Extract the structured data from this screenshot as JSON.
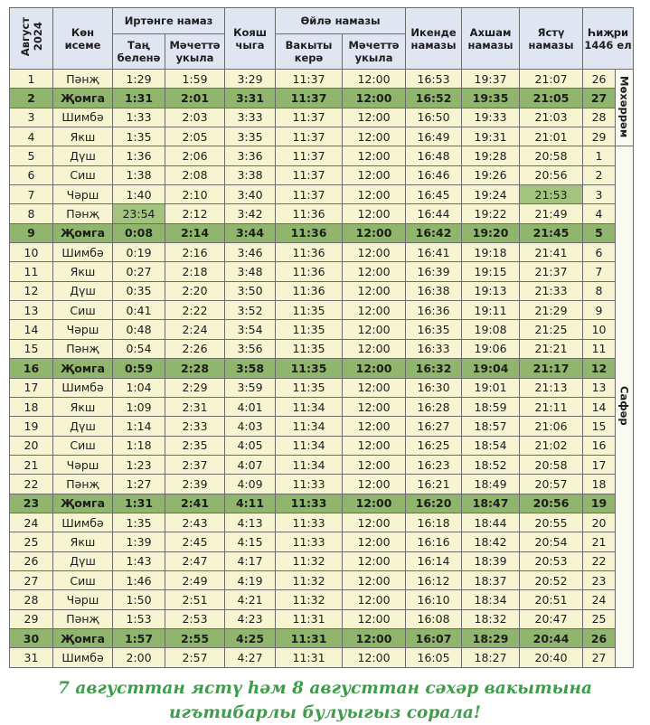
{
  "header": {
    "date": "Август\n2024",
    "day": "Көн\nисеме",
    "morning": {
      "title": "Иртәнге намаз",
      "cols": [
        "Таң\nбеленә",
        "Мәчеттә\nукыла"
      ]
    },
    "sunrise": "Кояш\nчыга",
    "noon": {
      "title": "Өйлә намазы",
      "cols": [
        "Вакыты\nкерә",
        "Мәчеттә\nукыла"
      ]
    },
    "asr": "Икенде\nнамазы",
    "maghrib": "Ахшам\nнамазы",
    "isha": "Ястү\nнамазы",
    "hijri": "Һиҗри\n1446 ел"
  },
  "rows": [
    [
      "1",
      "Пәнҗ",
      "1:29",
      "1:59",
      "3:29",
      "11:37",
      "12:00",
      "16:53",
      "19:37",
      "21:07",
      "26"
    ],
    [
      "2",
      "Җомга",
      "1:31",
      "2:01",
      "3:31",
      "11:37",
      "12:00",
      "16:52",
      "19:35",
      "21:05",
      "27"
    ],
    [
      "3",
      "Шимбә",
      "1:33",
      "2:03",
      "3:33",
      "11:37",
      "12:00",
      "16:50",
      "19:33",
      "21:03",
      "28"
    ],
    [
      "4",
      "Якш",
      "1:35",
      "2:05",
      "3:35",
      "11:37",
      "12:00",
      "16:49",
      "19:31",
      "21:01",
      "29"
    ],
    [
      "5",
      "Дүш",
      "1:36",
      "2:06",
      "3:36",
      "11:37",
      "12:00",
      "16:48",
      "19:28",
      "20:58",
      "1"
    ],
    [
      "6",
      "Сиш",
      "1:38",
      "2:08",
      "3:38",
      "11:37",
      "12:00",
      "16:46",
      "19:26",
      "20:56",
      "2"
    ],
    [
      "7",
      "Чәрш",
      "1:40",
      "2:10",
      "3:40",
      "11:37",
      "12:00",
      "16:45",
      "19:24",
      "21:53",
      "3"
    ],
    [
      "8",
      "Пәнҗ",
      "23:54",
      "2:12",
      "3:42",
      "11:36",
      "12:00",
      "16:44",
      "19:22",
      "21:49",
      "4"
    ],
    [
      "9",
      "Җомга",
      "0:08",
      "2:14",
      "3:44",
      "11:36",
      "12:00",
      "16:42",
      "19:20",
      "21:45",
      "5"
    ],
    [
      "10",
      "Шимбә",
      "0:19",
      "2:16",
      "3:46",
      "11:36",
      "12:00",
      "16:41",
      "19:18",
      "21:41",
      "6"
    ],
    [
      "11",
      "Якш",
      "0:27",
      "2:18",
      "3:48",
      "11:36",
      "12:00",
      "16:39",
      "19:15",
      "21:37",
      "7"
    ],
    [
      "12",
      "Дүш",
      "0:35",
      "2:20",
      "3:50",
      "11:36",
      "12:00",
      "16:38",
      "19:13",
      "21:33",
      "8"
    ],
    [
      "13",
      "Сиш",
      "0:41",
      "2:22",
      "3:52",
      "11:35",
      "12:00",
      "16:36",
      "19:11",
      "21:29",
      "9"
    ],
    [
      "14",
      "Чәрш",
      "0:48",
      "2:24",
      "3:54",
      "11:35",
      "12:00",
      "16:35",
      "19:08",
      "21:25",
      "10"
    ],
    [
      "15",
      "Пәнҗ",
      "0:54",
      "2:26",
      "3:56",
      "11:35",
      "12:00",
      "16:33",
      "19:06",
      "21:21",
      "11"
    ],
    [
      "16",
      "Җомга",
      "0:59",
      "2:28",
      "3:58",
      "11:35",
      "12:00",
      "16:32",
      "19:04",
      "21:17",
      "12"
    ],
    [
      "17",
      "Шимбә",
      "1:04",
      "2:29",
      "3:59",
      "11:35",
      "12:00",
      "16:30",
      "19:01",
      "21:13",
      "13"
    ],
    [
      "18",
      "Якш",
      "1:09",
      "2:31",
      "4:01",
      "11:34",
      "12:00",
      "16:28",
      "18:59",
      "21:11",
      "14"
    ],
    [
      "19",
      "Дүш",
      "1:14",
      "2:33",
      "4:03",
      "11:34",
      "12:00",
      "16:27",
      "18:57",
      "21:06",
      "15"
    ],
    [
      "20",
      "Сиш",
      "1:18",
      "2:35",
      "4:05",
      "11:34",
      "12:00",
      "16:25",
      "18:54",
      "21:02",
      "16"
    ],
    [
      "21",
      "Чәрш",
      "1:23",
      "2:37",
      "4:07",
      "11:34",
      "12:00",
      "16:23",
      "18:52",
      "20:58",
      "17"
    ],
    [
      "22",
      "Пәнҗ",
      "1:27",
      "2:39",
      "4:09",
      "11:33",
      "12:00",
      "16:21",
      "18:49",
      "20:57",
      "18"
    ],
    [
      "23",
      "Җомга",
      "1:31",
      "2:41",
      "4:11",
      "11:33",
      "12:00",
      "16:20",
      "18:47",
      "20:56",
      "19"
    ],
    [
      "24",
      "Шимбә",
      "1:35",
      "2:43",
      "4:13",
      "11:33",
      "12:00",
      "16:18",
      "18:44",
      "20:55",
      "20"
    ],
    [
      "25",
      "Якш",
      "1:39",
      "2:45",
      "4:15",
      "11:33",
      "12:00",
      "16:16",
      "18:42",
      "20:54",
      "21"
    ],
    [
      "26",
      "Дүш",
      "1:43",
      "2:47",
      "4:17",
      "11:32",
      "12:00",
      "16:14",
      "18:39",
      "20:53",
      "22"
    ],
    [
      "27",
      "Сиш",
      "1:46",
      "2:49",
      "4:19",
      "11:32",
      "12:00",
      "16:12",
      "18:37",
      "20:52",
      "23"
    ],
    [
      "28",
      "Чәрш",
      "1:50",
      "2:51",
      "4:21",
      "11:32",
      "12:00",
      "16:10",
      "18:34",
      "20:51",
      "24"
    ],
    [
      "29",
      "Пәнҗ",
      "1:53",
      "2:53",
      "4:23",
      "11:31",
      "12:00",
      "16:08",
      "18:32",
      "20:47",
      "25"
    ],
    [
      "30",
      "Җомга",
      "1:57",
      "2:55",
      "4:25",
      "11:31",
      "12:00",
      "16:07",
      "18:29",
      "20:44",
      "26"
    ],
    [
      "31",
      "Шимбә",
      "2:00",
      "2:57",
      "4:27",
      "11:31",
      "12:00",
      "16:05",
      "18:27",
      "20:40",
      "27"
    ]
  ],
  "highlight_rows": [
    1,
    8,
    15,
    22,
    29
  ],
  "highlight_cells": [
    {
      "row": 7,
      "col": 2
    },
    {
      "row": 6,
      "col": 9
    }
  ],
  "months": [
    {
      "label": "Мөхәррәм",
      "rows": 4
    },
    {
      "label": "Сафәр",
      "rows": 27
    }
  ],
  "footer": [
    "7 августтан ястү һәм 8 августтан сәхәр вакытына",
    "игътибарлы булуыгыз сорала!"
  ]
}
